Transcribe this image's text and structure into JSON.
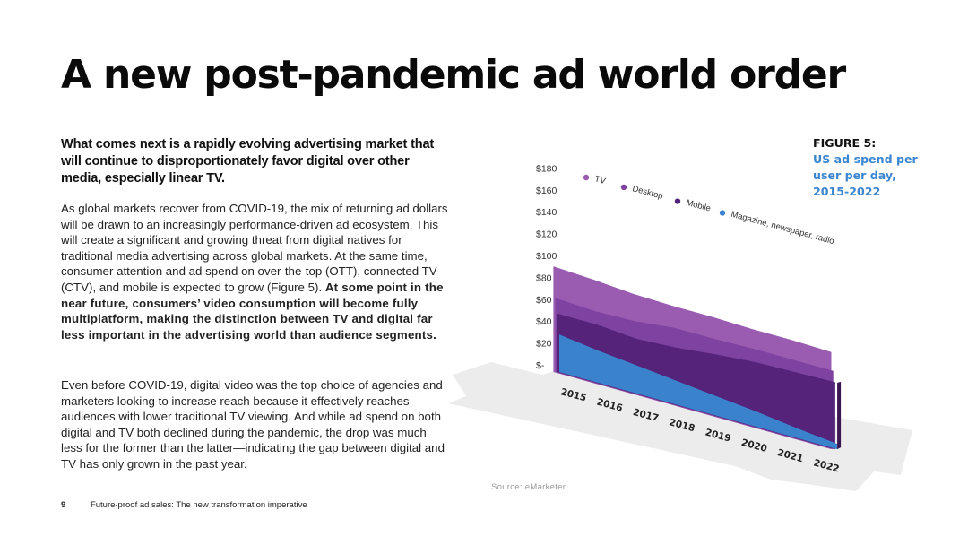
{
  "page": {
    "title": "A new post-pandemic ad world order",
    "lead": "What comes next is a rapidly evolving advertising market that will continue to disproportionately favor digital over other media, especially linear TV.",
    "para1": "As global markets recover from COVID-19, the mix of returning ad dollars will be drawn to an increasingly performance-driven ad ecosystem. This will create a significant and growing threat from digital natives for traditional media advertising across global markets. At the same time, consumer attention and ad spend on over-the-top (OTT), connected TV (CTV), and mobile is expected to grow (Figure 5).",
    "para1_bold": "At some point in the near future, consumers’ video consumption will become fully multiplatform, making the distinction between TV and digital far less important in the advertising world than audience segments.",
    "para2": "Even before COVID-19, digital video was the top choice of agencies and marketers looking to increase reach because it effectively reaches audiences with lower traditional TV viewing. And while ad spend on both digital and TV both declined during the pandemic, the drop was much less for the former than the latter—indicating the gap between digital and TV has only grown in the past year.",
    "figure_number": "FIGURE 5:",
    "figure_title": "US ad spend per user per day, 2015-2022",
    "source": "Source: eMarketer",
    "page_number": "9",
    "footer_text": "Future-proof ad sales: The new transformation imperative"
  },
  "chart_data": {
    "type": "area",
    "subtype": "3d-layered",
    "title": "US ad spend per user per day, 2015-2022",
    "x": [
      "2015",
      "2016",
      "2017",
      "2018",
      "2019",
      "2020",
      "2021",
      "2022"
    ],
    "y_ticks": [
      "$-",
      "$20",
      "$40",
      "$60",
      "$80",
      "$100",
      "$120",
      "$140",
      "$160",
      "$180"
    ],
    "ylim": [
      0,
      180
    ],
    "legend_position": "top",
    "series": [
      {
        "name": "TV",
        "color": "#9a5cb0",
        "values": [
          97,
          95,
          92,
          91,
          91,
          90,
          90,
          89
        ]
      },
      {
        "name": "Desktop",
        "color": "#7e42a0",
        "values": [
          68,
          66,
          67,
          71,
          71,
          72,
          72,
          72
        ]
      },
      {
        "name": "Mobile",
        "color": "#55237a",
        "values": [
          54,
          54,
          51,
          53,
          57,
          60,
          61,
          62
        ]
      },
      {
        "name": "Magazine, newspaper, radio",
        "color": "#3b82cc",
        "values": [
          35,
          30,
          26,
          22,
          18,
          14,
          9,
          5
        ]
      }
    ]
  }
}
